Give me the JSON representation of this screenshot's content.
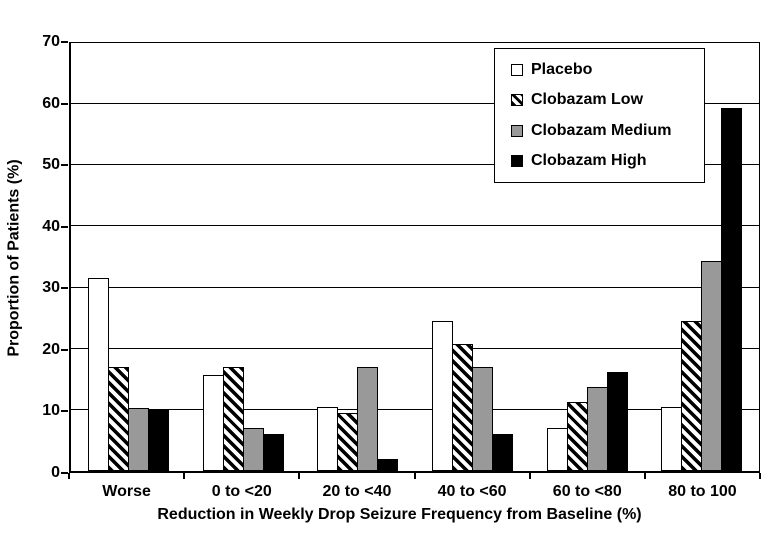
{
  "figure": {
    "background": "#FFFFFF",
    "axis_color": "#000000"
  },
  "chart_data": {
    "type": "bar",
    "title": "",
    "xlabel": "Reduction in Weekly Drop Seizure Frequency from Baseline (%)",
    "ylabel": "Proportion of Patients (%)",
    "ylim": [
      0,
      70
    ],
    "yticks": [
      0,
      10,
      20,
      30,
      40,
      50,
      60,
      70
    ],
    "grid": "horizontal",
    "legend_position": "top-right-inside",
    "categories": [
      "Worse",
      "0 to <20",
      "20 to <40",
      "40 to <60",
      "60 to <80",
      "80 to 100"
    ],
    "series": [
      {
        "name": "Placebo",
        "pattern": "solid",
        "fill": "#FFFFFF",
        "values": [
          31.5,
          15.7,
          10.5,
          24.5,
          7,
          10.5
        ]
      },
      {
        "name": "Clobazam Low",
        "pattern": "diagonal-hatch",
        "fill": "#FFFFFF",
        "values": [
          17,
          17,
          9.5,
          20.8,
          11.3,
          24.5
        ]
      },
      {
        "name": "Clobazam Medium",
        "pattern": "solid",
        "fill": "#999999",
        "values": [
          10.3,
          7,
          17,
          17,
          13.8,
          34.3
        ]
      },
      {
        "name": "Clobazam High",
        "pattern": "solid",
        "fill": "#000000",
        "values": [
          10.1,
          6,
          2,
          6,
          16.2,
          59.3
        ]
      }
    ]
  }
}
